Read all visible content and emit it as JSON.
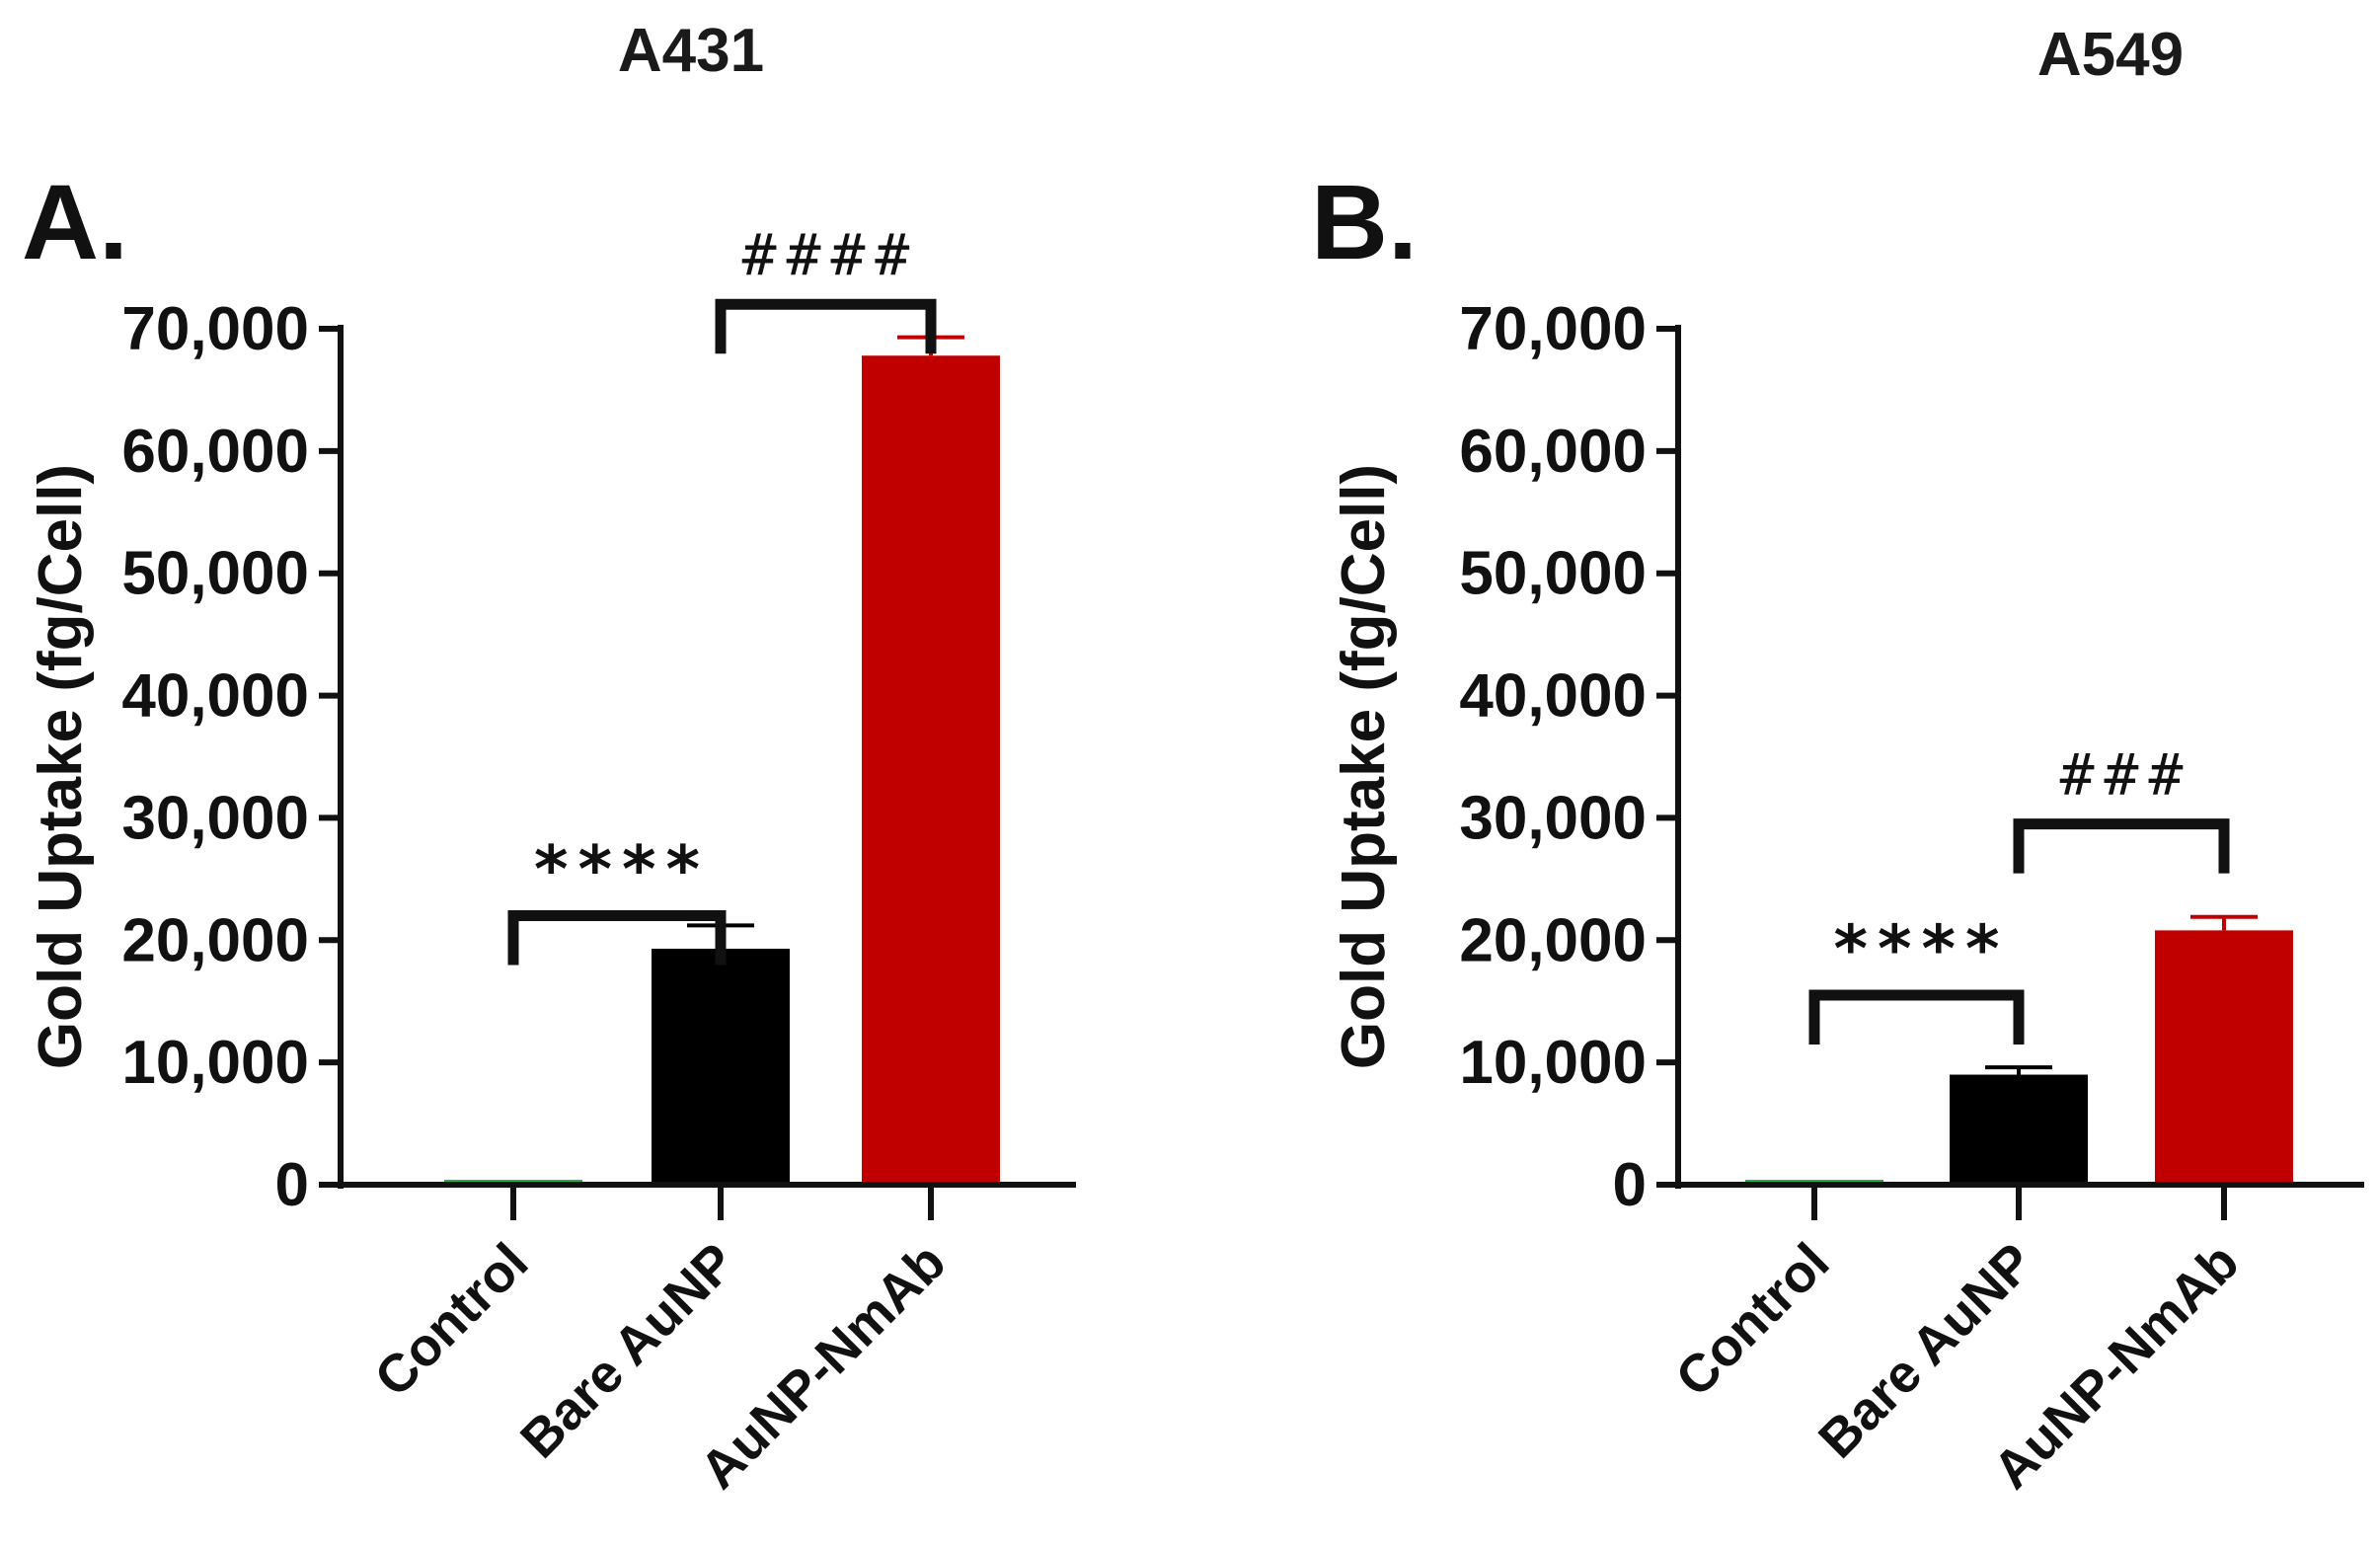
{
  "chart_data": [
    {
      "type": "bar",
      "panel_label": "A.",
      "title": "A431",
      "ylabel": "Gold Uptake (fg/Cell)",
      "xlabel": "",
      "ylim": [
        0,
        70000
      ],
      "yticks": [
        "0",
        "10,000",
        "20,000",
        "30,000",
        "40,000",
        "50,000",
        "60,000",
        "70,000"
      ],
      "yticks_values": [
        0,
        10000,
        20000,
        30000,
        40000,
        50000,
        60000,
        70000
      ],
      "categories": [
        "Control",
        "Bare AuNP",
        "AuNP-NmAb"
      ],
      "values": [
        400,
        19300,
        67800
      ],
      "errors": [
        0,
        1900,
        1500
      ],
      "colors": [
        "#22b14c",
        "#000000",
        "#c00000"
      ],
      "significance": [
        {
          "from": 0,
          "to": 1,
          "label": "****",
          "style": "asterisk",
          "level": 22000
        },
        {
          "from": 1,
          "to": 2,
          "label": "####",
          "style": "hash",
          "level": 72000
        }
      ]
    },
    {
      "type": "bar",
      "panel_label": "B.",
      "title": "A549",
      "ylabel": "Gold Uptake (fg/Cell)",
      "xlabel": "",
      "ylim": [
        0,
        70000
      ],
      "yticks": [
        "0",
        "10,000",
        "20,000",
        "30,000",
        "40,000",
        "50,000",
        "60,000",
        "70,000"
      ],
      "yticks_values": [
        0,
        10000,
        20000,
        30000,
        40000,
        50000,
        60000,
        70000
      ],
      "categories": [
        "Control",
        "Bare AuNP",
        "AuNP-NmAb"
      ],
      "values": [
        200,
        9000,
        20800
      ],
      "errors": [
        0,
        600,
        1100
      ],
      "colors": [
        "#22b14c",
        "#000000",
        "#c00000"
      ],
      "significance": [
        {
          "from": 0,
          "to": 1,
          "label": "****",
          "style": "asterisk",
          "level": 15500
        },
        {
          "from": 1,
          "to": 2,
          "label": "###",
          "style": "hash",
          "level": 29500
        }
      ]
    }
  ]
}
